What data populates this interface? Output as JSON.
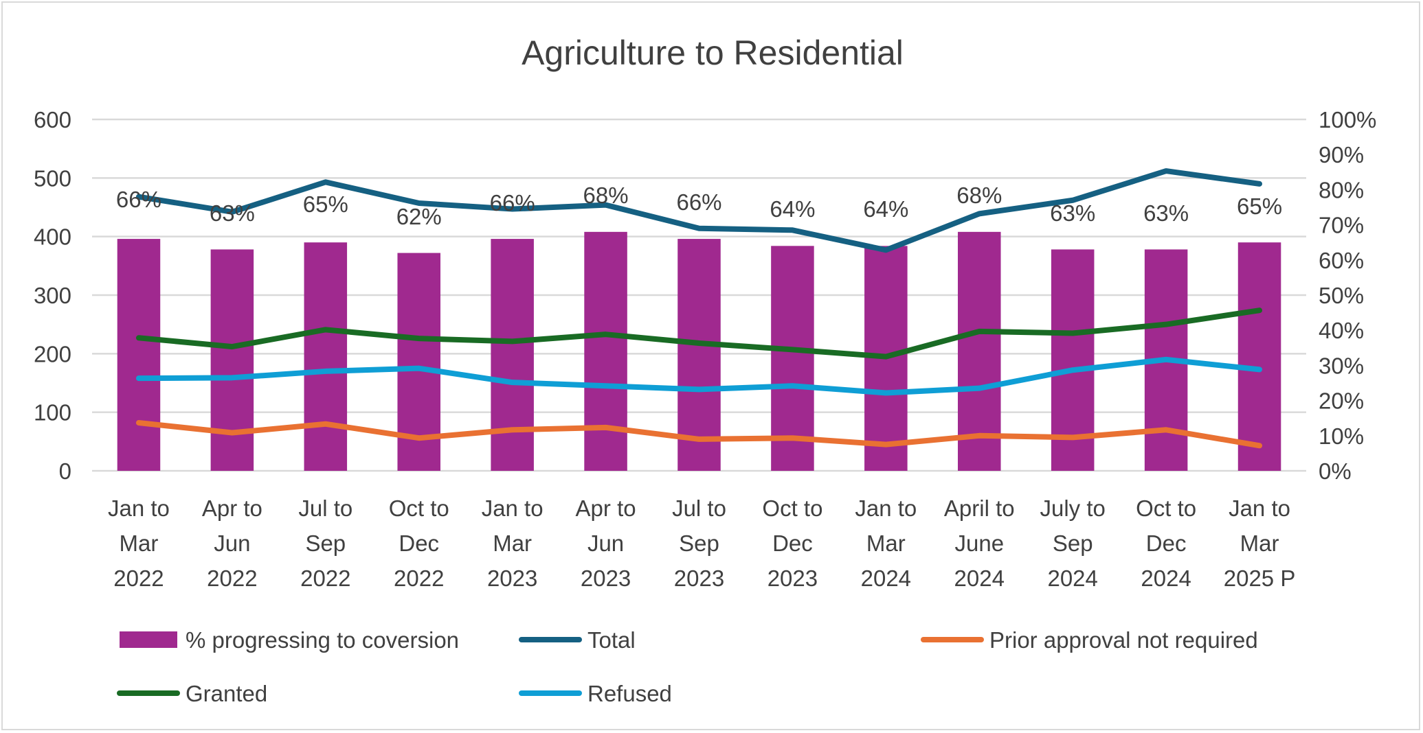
{
  "chart_data": {
    "type": "bar+line",
    "title": "Agriculture to Residential",
    "categories": [
      [
        "Jan to",
        "Mar",
        "2022"
      ],
      [
        "Apr to",
        "Jun",
        "2022"
      ],
      [
        "Jul to",
        "Sep",
        "2022"
      ],
      [
        "Oct to",
        "Dec",
        "2022"
      ],
      [
        "Jan to",
        "Mar",
        "2023"
      ],
      [
        "Apr to",
        "Jun",
        "2023"
      ],
      [
        "Jul to",
        "Sep",
        "2023"
      ],
      [
        "Oct to",
        "Dec",
        "2023"
      ],
      [
        "Jan to",
        "Mar",
        "2024"
      ],
      [
        "April to",
        "June",
        "2024"
      ],
      [
        "July to",
        "Sep",
        "2024"
      ],
      [
        "Oct to",
        "Dec",
        "2024"
      ],
      [
        "Jan to",
        "Mar",
        "2025 P"
      ]
    ],
    "left_axis": {
      "ylim": [
        0,
        600
      ],
      "ticks": [
        "0",
        "100",
        "200",
        "300",
        "400",
        "500",
        "600"
      ]
    },
    "right_axis": {
      "ylim": [
        0,
        1
      ],
      "ticks": [
        "0%",
        "10%",
        "20%",
        "30%",
        "40%",
        "50%",
        "60%",
        "70%",
        "80%",
        "90%",
        "100%"
      ]
    },
    "grid": true,
    "legend_position": "bottom",
    "bar_series": {
      "name": "% progressing to coversion",
      "axis": "right",
      "color": "#a0298f",
      "values": [
        0.66,
        0.63,
        0.65,
        0.62,
        0.66,
        0.68,
        0.66,
        0.64,
        0.64,
        0.68,
        0.63,
        0.63,
        0.65
      ],
      "labels": [
        "66%",
        "63%",
        "65%",
        "62%",
        "66%",
        "68%",
        "66%",
        "64%",
        "64%",
        "68%",
        "63%",
        "63%",
        "65%"
      ]
    },
    "series": [
      {
        "name": "Total",
        "color": "#156082",
        "values": [
          468,
          442,
          493,
          457,
          447,
          454,
          414,
          411,
          377,
          439,
          462,
          512,
          490
        ]
      },
      {
        "name": "Prior approval not required",
        "color": "#e97132",
        "values": [
          82,
          65,
          80,
          56,
          70,
          74,
          54,
          56,
          45,
          60,
          57,
          70,
          43
        ]
      },
      {
        "name": "Granted",
        "color": "#196b24",
        "values": [
          227,
          212,
          241,
          226,
          221,
          233,
          218,
          207,
          195,
          238,
          235,
          250,
          274
        ]
      },
      {
        "name": "Refused",
        "color": "#0f9ed5",
        "values": [
          158,
          159,
          170,
          175,
          151,
          145,
          139,
          145,
          133,
          141,
          172,
          190,
          173
        ]
      }
    ]
  }
}
